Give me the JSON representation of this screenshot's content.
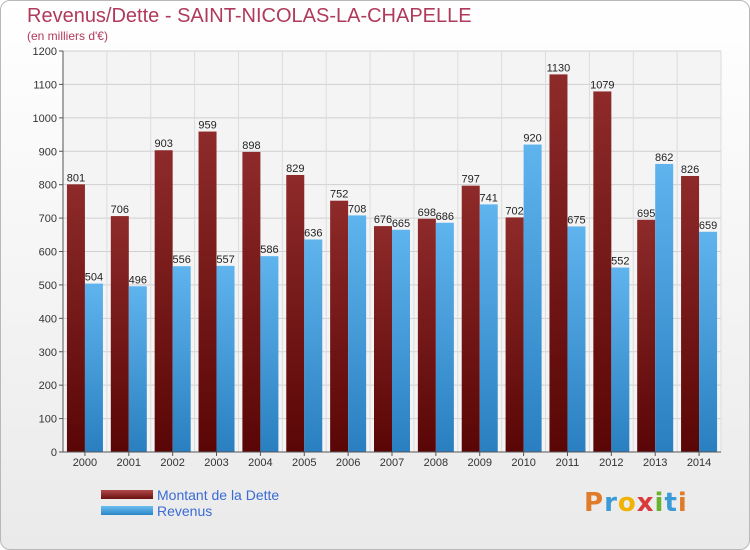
{
  "header": {
    "title": "Revenus/Dette - SAINT-NICOLAS-LA-CHAPELLE",
    "subtitle": "(en milliers d'€)"
  },
  "legend": {
    "items": [
      {
        "label": "Montant de la Dette",
        "color": "#7a1c1c"
      },
      {
        "label": "Revenus",
        "color": "#4aa3e6"
      }
    ]
  },
  "logo": {
    "text": "Proxiti",
    "letters": [
      "P",
      "r",
      "o",
      "x",
      "i",
      "t",
      "i"
    ],
    "colors": [
      "#e07b2a",
      "#3b9bd6",
      "#f0b400",
      "#d93a3a",
      "#69b42e",
      "#3b9bd6",
      "#e07b2a"
    ]
  },
  "chart_data": {
    "type": "bar",
    "categories": [
      "2000",
      "2001",
      "2002",
      "2003",
      "2004",
      "2005",
      "2006",
      "2007",
      "2008",
      "2009",
      "2010",
      "2011",
      "2012",
      "2013",
      "2014"
    ],
    "series": [
      {
        "name": "Montant de la Dette",
        "color": "#7a1c1c",
        "values": [
          801,
          706,
          903,
          959,
          898,
          829,
          752,
          676,
          698,
          797,
          702,
          1130,
          1079,
          695,
          826
        ]
      },
      {
        "name": "Revenus",
        "color": "#4aa3e6",
        "values": [
          504,
          496,
          556,
          557,
          586,
          636,
          708,
          665,
          686,
          741,
          920,
          675,
          552,
          862,
          659
        ]
      }
    ],
    "ylim": [
      0,
      1200
    ],
    "yticks": [
      0,
      100,
      200,
      300,
      400,
      500,
      600,
      700,
      800,
      900,
      1000,
      1100,
      1200
    ],
    "grid": true,
    "legend_position": "bottom-left"
  }
}
